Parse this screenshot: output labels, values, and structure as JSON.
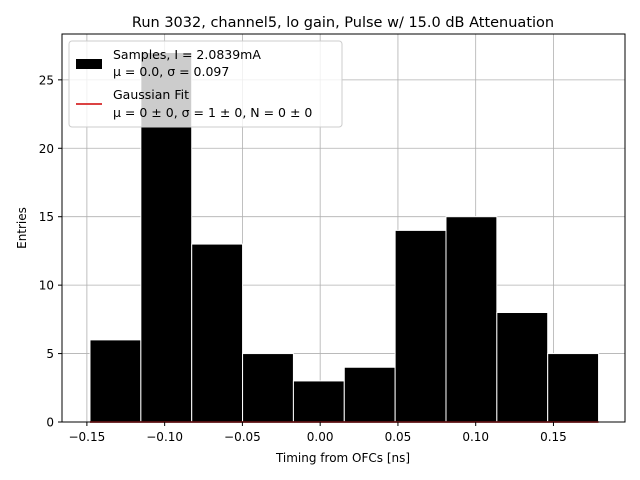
{
  "chart_data": {
    "type": "bar",
    "title": "Run 3032, channel5, lo gain, Pulse w/ 15.0 dB Attenuation",
    "xlabel": "Timing from OFCs [ns]",
    "ylabel": "Entries",
    "xlim": [
      -0.166,
      0.196
    ],
    "ylim": [
      0,
      28.35
    ],
    "grid": true,
    "legend_position": "top-left",
    "x_ticks": [
      -0.15,
      -0.1,
      -0.05,
      0.0,
      0.05,
      0.1,
      0.15
    ],
    "x_tick_labels": [
      "−0.15",
      "−0.10",
      "−0.05",
      "0.00",
      "0.05",
      "0.10",
      "0.15"
    ],
    "y_ticks": [
      0,
      5,
      10,
      15,
      20,
      25
    ],
    "y_tick_labels": [
      "0",
      "5",
      "10",
      "15",
      "20",
      "25"
    ],
    "bin_edges": [
      -0.148,
      -0.1153,
      -0.0826,
      -0.0499,
      -0.0172,
      0.0155,
      0.0482,
      0.0809,
      0.1136,
      0.1463,
      0.179
    ],
    "values": [
      6,
      27,
      13,
      5,
      3,
      4,
      14,
      15,
      8,
      5
    ],
    "fit_line": {
      "x": [
        -0.148,
        0.179
      ],
      "y": [
        0,
        0
      ]
    },
    "colors": {
      "bars": "#000000",
      "bar_edge": "#ffffff",
      "fit": "#d62728",
      "grid": "#b0b0b0"
    },
    "legend": {
      "samples_line1": "Samples, I = 2.0839mA",
      "samples_line2": "μ = 0.0, σ = 0.097",
      "fit_line1": "Gaussian Fit",
      "fit_line2": "μ = 0 ± 0, σ = 1 ± 0, N = 0 ± 0"
    }
  }
}
